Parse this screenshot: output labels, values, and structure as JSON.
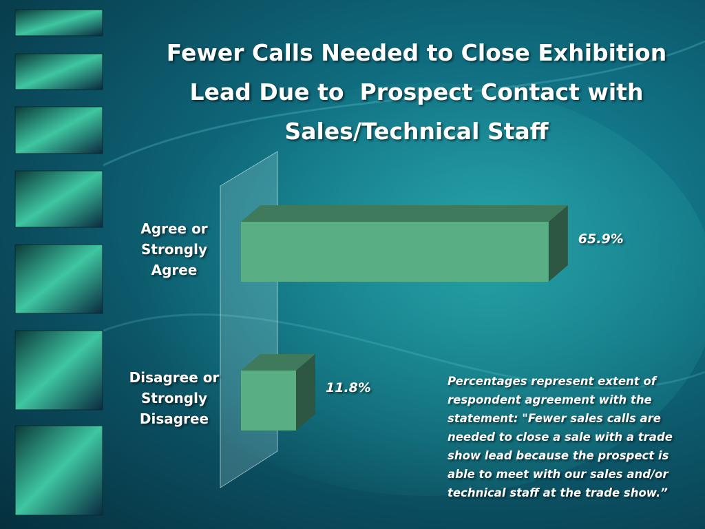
{
  "chart_data": {
    "type": "bar",
    "orientation": "horizontal",
    "title": "Fewer Calls Needed to Close Exhibition Lead Due to  Prospect Contact with Sales/Technical Staff",
    "categories": [
      "Agree or Strongly Agree",
      "Disagree or Strongly Disagree"
    ],
    "values": [
      65.9,
      11.8
    ],
    "value_labels": [
      "65.9%",
      "11.8%"
    ],
    "color": "#5aae84",
    "annotation": "Percentages represent extent of respondent agreement with the statement:  \"Fewer  sales calls are needed to close a sale with a trade show lead because the prospect is able to meet with our sales and/or technical staff at the trade show.”"
  }
}
